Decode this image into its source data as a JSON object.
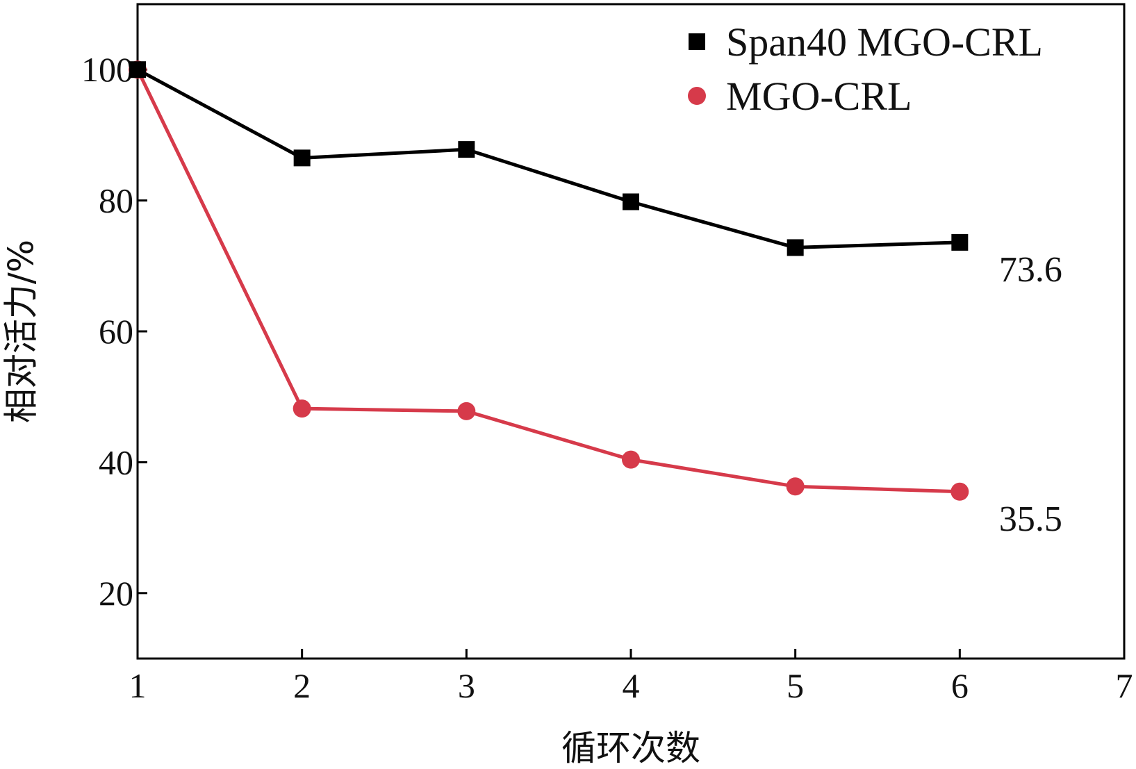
{
  "chart_data": {
    "type": "line",
    "title": "",
    "xlabel": "循环次数",
    "ylabel": "相对活力/%",
    "xlim": [
      1,
      7
    ],
    "ylim": [
      10,
      110
    ],
    "xticks": [
      1,
      2,
      3,
      4,
      5,
      6,
      7
    ],
    "yticks": [
      20,
      40,
      60,
      80,
      100
    ],
    "grid": false,
    "legend_position": "top-right",
    "series": [
      {
        "name": "Span40 MGO-CRL",
        "color": "#000000",
        "marker": "square",
        "x": [
          1,
          2,
          3,
          4,
          5,
          6
        ],
        "y": [
          100,
          86.5,
          87.8,
          79.8,
          72.8,
          73.6
        ]
      },
      {
        "name": "MGO-CRL",
        "color": "#d63a4a",
        "marker": "circle",
        "x": [
          1,
          2,
          3,
          4,
          5,
          6
        ],
        "y": [
          100,
          48.2,
          47.8,
          40.4,
          36.3,
          35.5
        ]
      }
    ],
    "annotations": [
      {
        "text": "73.6",
        "series": 0,
        "x": 6,
        "y": 73.6
      },
      {
        "text": "35.5",
        "series": 1,
        "x": 6,
        "y": 35.5
      }
    ]
  }
}
